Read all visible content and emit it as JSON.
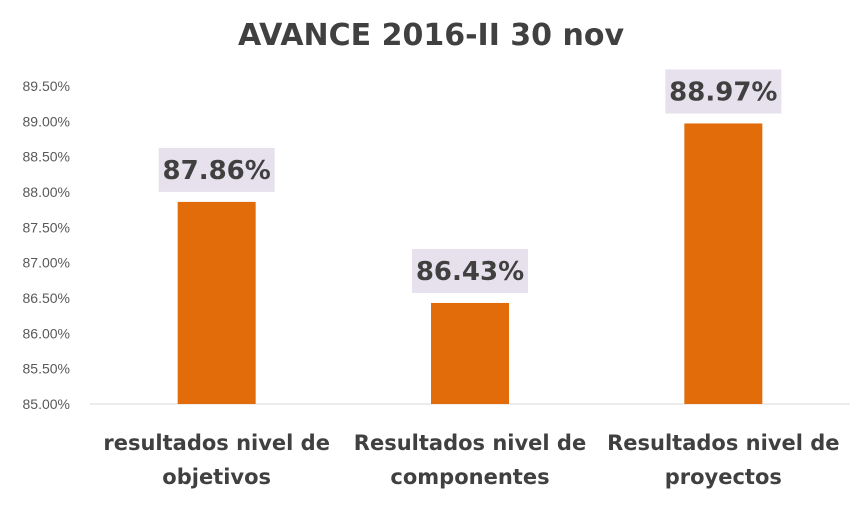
{
  "chart_data": {
    "type": "bar",
    "title": "AVANCE 2016-II 30 nov",
    "categories": [
      [
        "resultados nivel de",
        "objetivos"
      ],
      [
        "Resultados nivel de",
        "componentes"
      ],
      [
        "Resultados nivel de",
        "proyectos"
      ]
    ],
    "values": [
      87.86,
      86.43,
      88.97
    ],
    "data_labels": [
      "87.86%",
      "86.43%",
      "88.97%"
    ],
    "yticks": [
      "85.00%",
      "85.50%",
      "86.00%",
      "86.50%",
      "87.00%",
      "87.50%",
      "88.00%",
      "88.50%",
      "89.00%",
      "89.50%"
    ],
    "ylim": [
      85,
      89.5
    ],
    "bar_color": "#E36C0A",
    "label_bg_color": "#E6E1EC",
    "xlabel": "",
    "ylabel": "",
    "grid": false,
    "legend": "none"
  }
}
